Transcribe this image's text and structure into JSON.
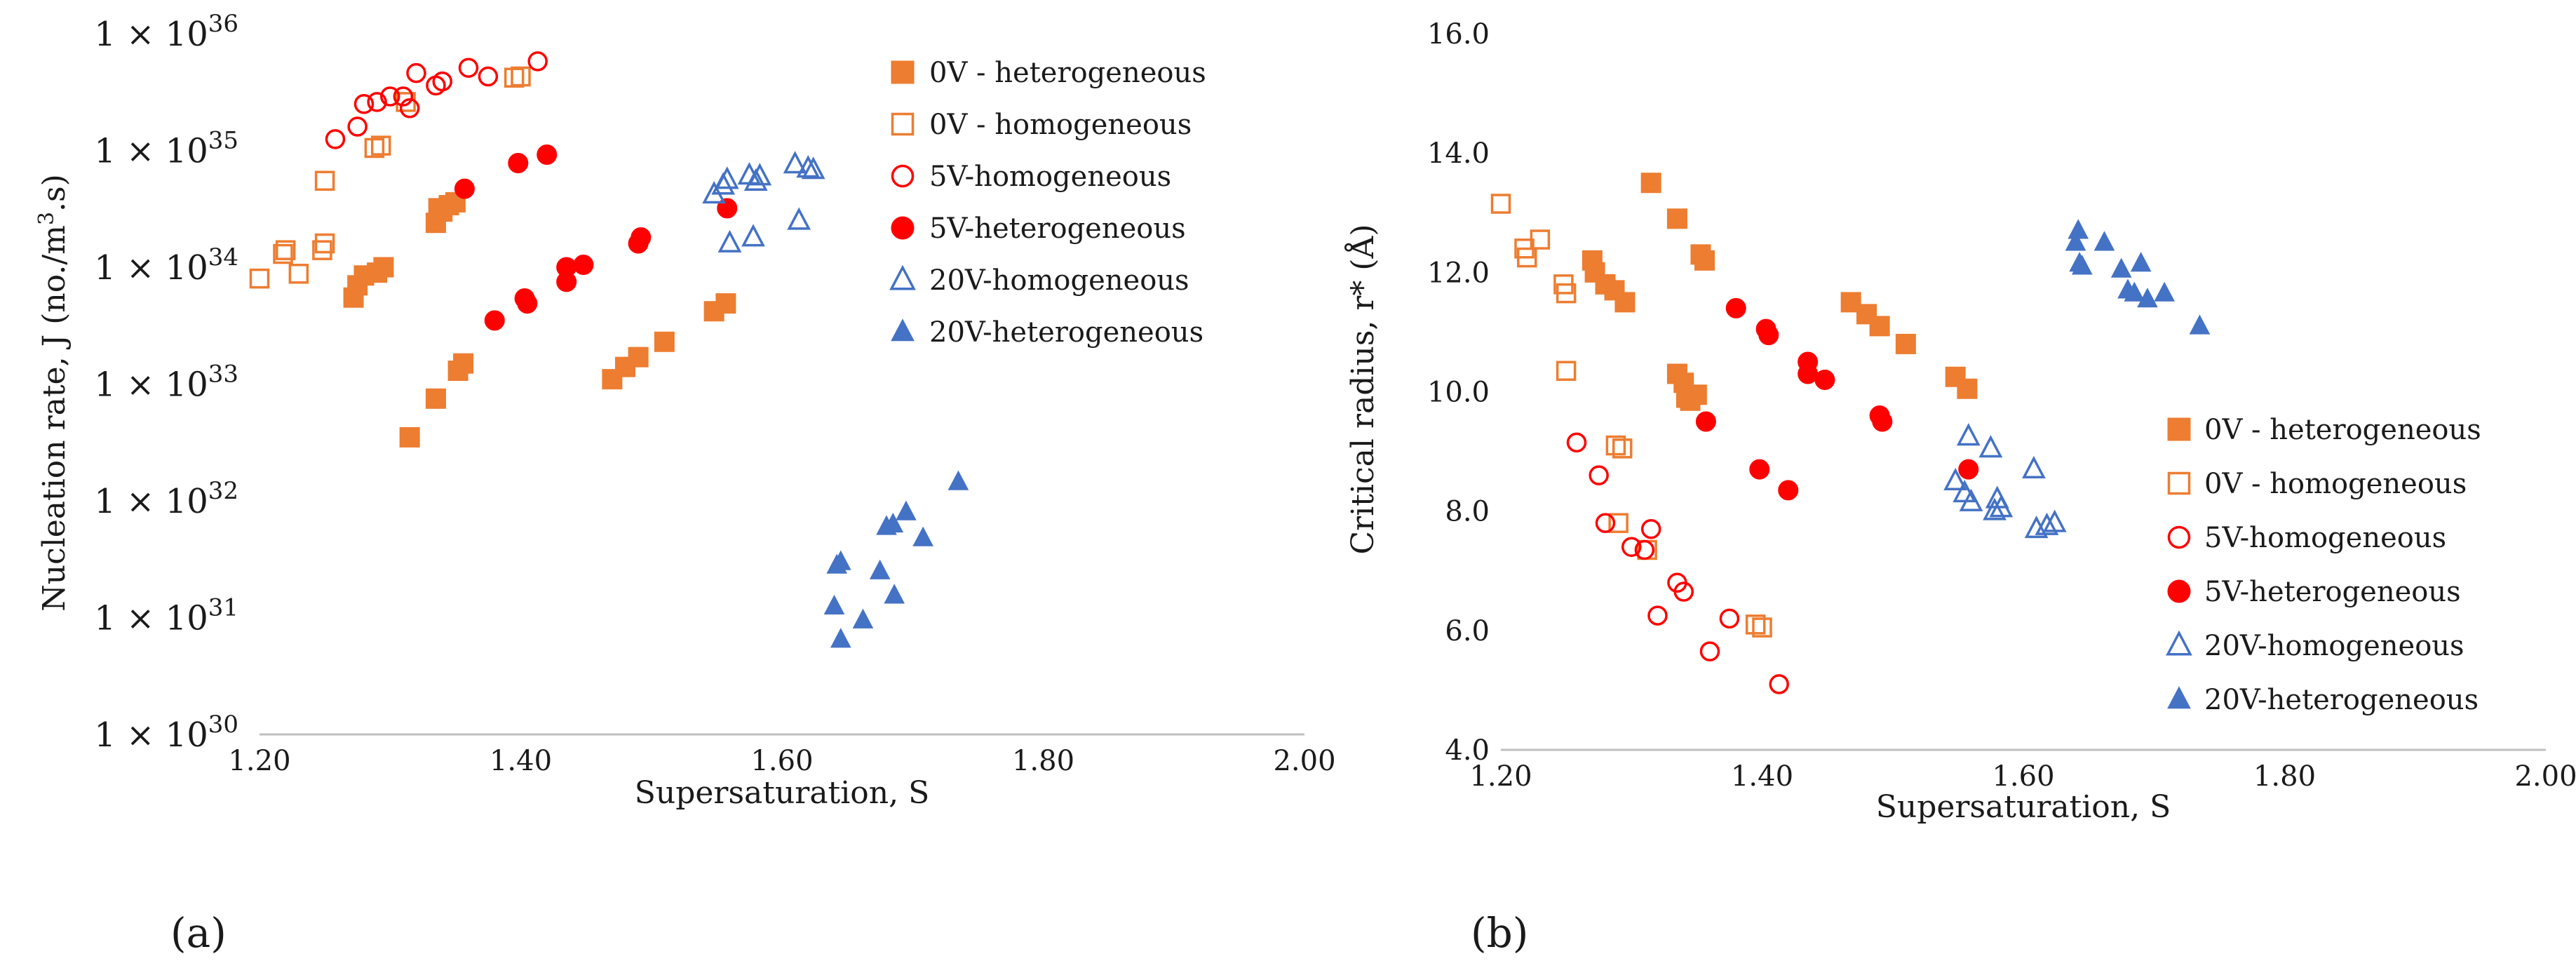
{
  "colors": {
    "orange": "#ED7D31",
    "red": "#FF0000",
    "blue": "#4472C4",
    "axis": "#BFBFBF"
  },
  "panels": [
    {
      "label": "(a)",
      "legend_position": "top-right"
    },
    {
      "label": "(b)",
      "legend_position": "bottom-right"
    }
  ],
  "chart_data": [
    {
      "type": "scatter",
      "panel": "(a)",
      "xlabel": "Supersaturation, S",
      "ylabel": "Nucleation rate, J (no./m³.s)",
      "ylabel_parts": {
        "main": "Nucleation rate, J (no./m",
        "sup": "3",
        "end": ".s)"
      },
      "xlim": [
        1.2,
        2.0
      ],
      "xticks": [
        "1.20",
        "1.40",
        "1.60",
        "1.80",
        "2.00"
      ],
      "yscale": "log",
      "ylim_exp": [
        30,
        36
      ],
      "yticks": [
        {
          "mantissa": "1 × 10",
          "exp": "30"
        },
        {
          "mantissa": "1 × 10",
          "exp": "31"
        },
        {
          "mantissa": "1 × 10",
          "exp": "32"
        },
        {
          "mantissa": "1 × 10",
          "exp": "33"
        },
        {
          "mantissa": "1 × 10",
          "exp": "34"
        },
        {
          "mantissa": "1 × 10",
          "exp": "35"
        },
        {
          "mantissa": "1 × 10",
          "exp": "36"
        }
      ],
      "series": [
        {
          "name": "0V - heterogeneous",
          "marker": "square-filled",
          "color": "#ED7D31",
          "points": [
            [
              1.275,
              7e+33
            ],
            [
              1.28,
              8.5e+33
            ],
            [
              1.29,
              9e+33
            ],
            [
              1.295,
              1e+34
            ],
            [
              1.272,
              5.5e+33
            ],
            [
              1.335,
              2.4e+34
            ],
            [
              1.34,
              3e+34
            ],
            [
              1.345,
              3.4e+34
            ],
            [
              1.35,
              3.6e+34
            ],
            [
              1.337,
              3.2e+34
            ],
            [
              1.315,
              3.5e+32
            ],
            [
              1.335,
              7.5e+32
            ],
            [
              1.352,
              1.3e+33
            ],
            [
              1.356,
              1.5e+33
            ],
            [
              1.47,
              1.1e+33
            ],
            [
              1.48,
              1.4e+33
            ],
            [
              1.49,
              1.7e+33
            ],
            [
              1.51,
              2.3e+33
            ],
            [
              1.548,
              4.2e+33
            ],
            [
              1.557,
              4.9e+33
            ]
          ]
        },
        {
          "name": "0V - homogeneous",
          "marker": "square-open",
          "color": "#ED7D31",
          "points": [
            [
              1.2,
              8e+33
            ],
            [
              1.218,
              1.3e+34
            ],
            [
              1.22,
              1.4e+34
            ],
            [
              1.23,
              8.8e+33
            ],
            [
              1.248,
              1.4e+34
            ],
            [
              1.25,
              1.6e+34
            ],
            [
              1.25,
              5.5e+34
            ],
            [
              1.288,
              1.05e+35
            ],
            [
              1.293,
              1.1e+35
            ],
            [
              1.312,
              2.6e+35
            ],
            [
              1.4,
              4.3e+35
            ],
            [
              1.395,
              4.2e+35
            ]
          ]
        },
        {
          "name": "5V-homogeneous",
          "marker": "circle-open",
          "color": "#FF0000",
          "points": [
            [
              1.258,
              1.25e+35
            ],
            [
              1.275,
              1.6e+35
            ],
            [
              1.28,
              2.5e+35
            ],
            [
              1.29,
              2.6e+35
            ],
            [
              1.3,
              2.9e+35
            ],
            [
              1.31,
              2.9e+35
            ],
            [
              1.315,
              2.3e+35
            ],
            [
              1.32,
              4.6e+35
            ],
            [
              1.335,
              3.6e+35
            ],
            [
              1.34,
              3.9e+35
            ],
            [
              1.36,
              5.1e+35
            ],
            [
              1.375,
              4.3e+35
            ],
            [
              1.413,
              5.8e+35
            ]
          ]
        },
        {
          "name": "5V-heterogeneous",
          "marker": "circle-filled",
          "color": "#FF0000",
          "points": [
            [
              1.357,
              4.7e+34
            ],
            [
              1.38,
              3.5e+33
            ],
            [
              1.398,
              7.8e+34
            ],
            [
              1.403,
              5.4e+33
            ],
            [
              1.405,
              4.9e+33
            ],
            [
              1.42,
              9.2e+34
            ],
            [
              1.435,
              7.5e+33
            ],
            [
              1.435,
              1e+34
            ],
            [
              1.448,
              1.05e+34
            ],
            [
              1.49,
              1.6e+34
            ],
            [
              1.492,
              1.8e+34
            ],
            [
              1.558,
              3.2e+34
            ]
          ]
        },
        {
          "name": "20V-homogeneous",
          "marker": "triangle-open",
          "color": "#4472C4",
          "points": [
            [
              1.548,
              4.2e+34
            ],
            [
              1.555,
              5e+34
            ],
            [
              1.558,
              5.6e+34
            ],
            [
              1.56,
              1.6e+34
            ],
            [
              1.575,
              6.1e+34
            ],
            [
              1.578,
              1.8e+34
            ],
            [
              1.58,
              5.4e+34
            ],
            [
              1.583,
              6e+34
            ],
            [
              1.61,
              7.6e+34
            ],
            [
              1.613,
              2.5e+34
            ],
            [
              1.62,
              7e+34
            ],
            [
              1.624,
              6.8e+34
            ]
          ]
        },
        {
          "name": "20V-heterogeneous",
          "marker": "triangle-filled",
          "color": "#4472C4",
          "points": [
            [
              1.64,
              1.25e+31
            ],
            [
              1.642,
              2.8e+31
            ],
            [
              1.645,
              3e+31
            ],
            [
              1.645,
              6.5e+30
            ],
            [
              1.662,
              9.5e+30
            ],
            [
              1.675,
              2.5e+31
            ],
            [
              1.68,
              6e+31
            ],
            [
              1.685,
              6.3e+31
            ],
            [
              1.686,
              1.55e+31
            ],
            [
              1.695,
              8e+31
            ],
            [
              1.708,
              4.8e+31
            ],
            [
              1.735,
              1.45e+32
            ]
          ]
        }
      ]
    },
    {
      "type": "scatter",
      "panel": "(b)",
      "xlabel": "Supersaturation, S",
      "ylabel": "Critical radius, r* (Å)",
      "xlim": [
        1.2,
        2.0
      ],
      "ylim": [
        4.0,
        16.0
      ],
      "xticks": [
        "1.20",
        "1.40",
        "1.60",
        "1.80",
        "2.00"
      ],
      "yticks": [
        "4.0",
        "6.0",
        "8.0",
        "10.0",
        "12.0",
        "14.0",
        "16.0"
      ],
      "series": [
        {
          "name": "0V - heterogeneous",
          "marker": "square-filled",
          "color": "#ED7D31",
          "points": [
            [
              1.315,
              13.5
            ],
            [
              1.335,
              12.9
            ],
            [
              1.353,
              12.3
            ],
            [
              1.356,
              12.2
            ],
            [
              1.27,
              12.2
            ],
            [
              1.272,
              12.0
            ],
            [
              1.28,
              11.8
            ],
            [
              1.287,
              11.7
            ],
            [
              1.295,
              11.5
            ],
            [
              1.335,
              10.3
            ],
            [
              1.34,
              10.15
            ],
            [
              1.342,
              9.9
            ],
            [
              1.35,
              9.95
            ],
            [
              1.345,
              9.85
            ],
            [
              1.468,
              11.5
            ],
            [
              1.48,
              11.3
            ],
            [
              1.49,
              11.1
            ],
            [
              1.51,
              10.8
            ],
            [
              1.548,
              10.25
            ],
            [
              1.557,
              10.05
            ]
          ]
        },
        {
          "name": "0V - homogeneous",
          "marker": "square-open",
          "color": "#ED7D31",
          "points": [
            [
              1.2,
              13.15
            ],
            [
              1.218,
              12.4
            ],
            [
              1.22,
              12.25
            ],
            [
              1.23,
              12.55
            ],
            [
              1.248,
              11.8
            ],
            [
              1.25,
              11.65
            ],
            [
              1.25,
              10.35
            ],
            [
              1.288,
              9.1
            ],
            [
              1.293,
              9.05
            ],
            [
              1.29,
              7.8
            ],
            [
              1.312,
              7.35
            ],
            [
              1.395,
              6.1
            ],
            [
              1.4,
              6.05
            ]
          ]
        },
        {
          "name": "5V-homogeneous",
          "marker": "circle-open",
          "color": "#FF0000",
          "points": [
            [
              1.258,
              9.15
            ],
            [
              1.275,
              8.6
            ],
            [
              1.28,
              7.8
            ],
            [
              1.3,
              7.4
            ],
            [
              1.31,
              7.35
            ],
            [
              1.315,
              7.7
            ],
            [
              1.32,
              6.25
            ],
            [
              1.335,
              6.8
            ],
            [
              1.34,
              6.65
            ],
            [
              1.36,
              5.65
            ],
            [
              1.375,
              6.2
            ],
            [
              1.413,
              5.1
            ]
          ]
        },
        {
          "name": "5V-heterogeneous",
          "marker": "circle-filled",
          "color": "#FF0000",
          "points": [
            [
              1.357,
              9.5
            ],
            [
              1.38,
              11.4
            ],
            [
              1.398,
              8.7
            ],
            [
              1.403,
              11.05
            ],
            [
              1.405,
              10.95
            ],
            [
              1.42,
              8.35
            ],
            [
              1.435,
              10.5
            ],
            [
              1.435,
              10.3
            ],
            [
              1.448,
              10.2
            ],
            [
              1.49,
              9.6
            ],
            [
              1.492,
              9.5
            ],
            [
              1.558,
              8.7
            ]
          ]
        },
        {
          "name": "20V-homogeneous",
          "marker": "triangle-open",
          "color": "#4472C4",
          "points": [
            [
              1.548,
              8.5
            ],
            [
              1.555,
              8.3
            ],
            [
              1.558,
              9.25
            ],
            [
              1.56,
              8.15
            ],
            [
              1.575,
              9.05
            ],
            [
              1.578,
              8.0
            ],
            [
              1.58,
              8.2
            ],
            [
              1.583,
              8.05
            ],
            [
              1.608,
              8.7
            ],
            [
              1.61,
              7.7
            ],
            [
              1.618,
              7.75
            ],
            [
              1.624,
              7.8
            ]
          ]
        },
        {
          "name": "20V-heterogeneous",
          "marker": "triangle-filled",
          "color": "#4472C4",
          "points": [
            [
              1.64,
              12.5
            ],
            [
              1.642,
              12.7
            ],
            [
              1.643,
              12.15
            ],
            [
              1.645,
              12.1
            ],
            [
              1.662,
              12.5
            ],
            [
              1.675,
              12.05
            ],
            [
              1.68,
              11.7
            ],
            [
              1.685,
              11.65
            ],
            [
              1.69,
              12.15
            ],
            [
              1.695,
              11.55
            ],
            [
              1.708,
              11.65
            ],
            [
              1.735,
              11.1
            ]
          ]
        }
      ]
    }
  ]
}
